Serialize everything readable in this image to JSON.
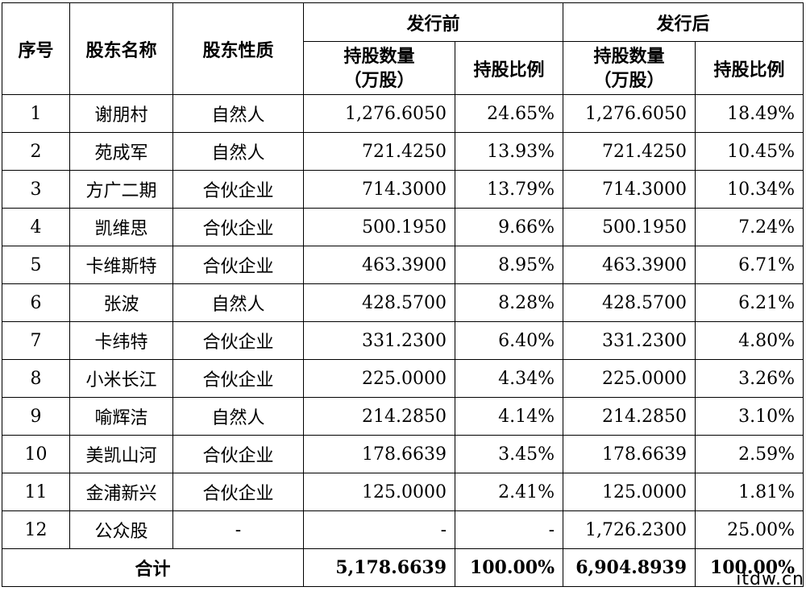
{
  "headers": {
    "seq": "序号",
    "name": "股东名称",
    "nature": "股东性质",
    "before": "发行前",
    "after": "发行后",
    "shares_line1": "持股数量",
    "shares_line2": "（万股）",
    "ratio": "持股比例"
  },
  "rows": [
    {
      "seq": "1",
      "name": "谢朋村",
      "nature": "自然人",
      "before_shares": "1,276.6050",
      "before_ratio": "24.65%",
      "after_shares": "1,276.6050",
      "after_ratio": "18.49%"
    },
    {
      "seq": "2",
      "name": "苑成军",
      "nature": "自然人",
      "before_shares": "721.4250",
      "before_ratio": "13.93%",
      "after_shares": "721.4250",
      "after_ratio": "10.45%"
    },
    {
      "seq": "3",
      "name": "方广二期",
      "nature": "合伙企业",
      "before_shares": "714.3000",
      "before_ratio": "13.79%",
      "after_shares": "714.3000",
      "after_ratio": "10.34%"
    },
    {
      "seq": "4",
      "name": "凯维思",
      "nature": "合伙企业",
      "before_shares": "500.1950",
      "before_ratio": "9.66%",
      "after_shares": "500.1950",
      "after_ratio": "7.24%"
    },
    {
      "seq": "5",
      "name": "卡维斯特",
      "nature": "合伙企业",
      "before_shares": "463.3900",
      "before_ratio": "8.95%",
      "after_shares": "463.3900",
      "after_ratio": "6.71%"
    },
    {
      "seq": "6",
      "name": "张波",
      "nature": "自然人",
      "before_shares": "428.5700",
      "before_ratio": "8.28%",
      "after_shares": "428.5700",
      "after_ratio": "6.21%"
    },
    {
      "seq": "7",
      "name": "卡纬特",
      "nature": "合伙企业",
      "before_shares": "331.2300",
      "before_ratio": "6.40%",
      "after_shares": "331.2300",
      "after_ratio": "4.80%"
    },
    {
      "seq": "8",
      "name": "小米长江",
      "nature": "合伙企业",
      "before_shares": "225.0000",
      "before_ratio": "4.34%",
      "after_shares": "225.0000",
      "after_ratio": "3.26%"
    },
    {
      "seq": "9",
      "name": "喻辉洁",
      "nature": "自然人",
      "before_shares": "214.2850",
      "before_ratio": "4.14%",
      "after_shares": "214.2850",
      "after_ratio": "3.10%"
    },
    {
      "seq": "10",
      "name": "美凯山河",
      "nature": "合伙企业",
      "before_shares": "178.6639",
      "before_ratio": "3.45%",
      "after_shares": "178.6639",
      "after_ratio": "2.59%"
    },
    {
      "seq": "11",
      "name": "金浦新兴",
      "nature": "合伙企业",
      "before_shares": "125.0000",
      "before_ratio": "2.41%",
      "after_shares": "125.0000",
      "after_ratio": "1.81%"
    },
    {
      "seq": "12",
      "name": "公众股",
      "nature": "-",
      "before_shares": "-",
      "before_ratio": "-",
      "after_shares": "1,726.2300",
      "after_ratio": "25.00%"
    }
  ],
  "total": {
    "label": "合计",
    "before_shares": "5,178.6639",
    "before_ratio": "100.00%",
    "after_shares": "6,904.8939",
    "after_ratio": "100.00%"
  },
  "watermark": "itdw.cn"
}
